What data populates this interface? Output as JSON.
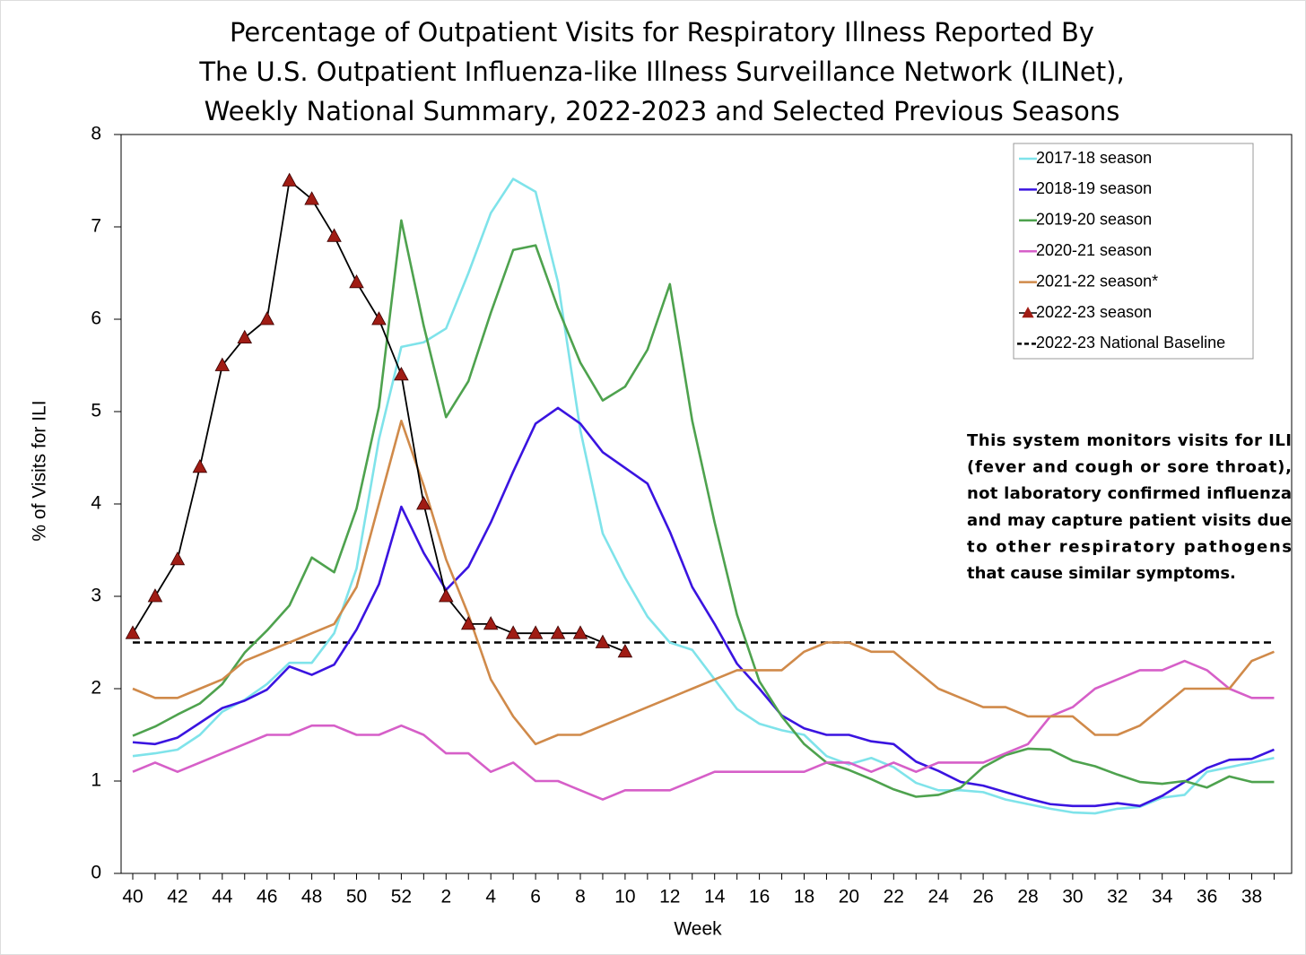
{
  "chart_data": {
    "type": "line",
    "title": [
      "Percentage of Outpatient Visits for Respiratory Illness Reported By",
      "The U.S. Outpatient Influenza-like Illness Surveillance Network (ILINet),",
      "Weekly National Summary, 2022-2023 and Selected Previous Seasons"
    ],
    "x_label": "Week",
    "y_label": "% of Visits for ILI",
    "ylim": [
      0,
      8
    ],
    "yticks": [
      0,
      1,
      2,
      3,
      4,
      5,
      6,
      7,
      8
    ],
    "categories": [
      "40",
      null,
      "42",
      null,
      "44",
      null,
      "46",
      null,
      "48",
      null,
      "50",
      null,
      "52",
      null,
      "2",
      null,
      "4",
      null,
      "6",
      null,
      "8",
      null,
      "10",
      null,
      "12",
      null,
      "14",
      null,
      "16",
      null,
      "18",
      null,
      "20",
      null,
      "22",
      null,
      "24",
      null,
      "26",
      null,
      "28",
      null,
      "30",
      null,
      "32",
      null,
      "34",
      null,
      "36",
      null,
      "38",
      null
    ],
    "series": [
      {
        "name": "2017-18 season",
        "color": "#7fe3ea",
        "values": [
          1.27,
          1.3,
          1.34,
          1.5,
          1.75,
          1.88,
          2.05,
          2.28,
          2.28,
          2.6,
          3.3,
          4.7,
          5.7,
          5.75,
          5.9,
          6.5,
          7.15,
          7.52,
          7.38,
          6.4,
          4.8,
          3.68,
          3.2,
          2.78,
          2.5,
          2.42,
          2.1,
          1.78,
          1.62,
          1.55,
          1.5,
          1.27,
          1.18,
          1.25,
          1.15,
          0.98,
          0.9,
          0.9,
          0.88,
          0.8,
          0.75,
          0.7,
          0.66,
          0.65,
          0.7,
          0.72,
          0.82,
          0.85,
          1.1,
          1.15,
          1.2,
          1.25
        ]
      },
      {
        "name": "2018-19 season",
        "color": "#3a14e0",
        "values": [
          1.42,
          1.4,
          1.47,
          1.63,
          1.79,
          1.87,
          1.99,
          2.24,
          2.15,
          2.26,
          2.64,
          3.13,
          3.97,
          3.47,
          3.07,
          3.32,
          3.8,
          4.35,
          4.87,
          5.04,
          4.87,
          4.56,
          4.39,
          4.22,
          3.7,
          3.1,
          2.7,
          2.27,
          2.0,
          1.71,
          1.57,
          1.5,
          1.5,
          1.43,
          1.4,
          1.21,
          1.11,
          0.99,
          0.95,
          0.88,
          0.81,
          0.75,
          0.73,
          0.73,
          0.76,
          0.73,
          0.84,
          0.99,
          1.14,
          1.23,
          1.24,
          1.34
        ]
      },
      {
        "name": "2019-20 season",
        "color": "#4ea24e",
        "values": [
          1.49,
          1.59,
          1.72,
          1.84,
          2.05,
          2.39,
          2.63,
          2.9,
          3.42,
          3.26,
          3.95,
          5.05,
          7.07,
          5.93,
          4.94,
          5.33,
          6.07,
          6.75,
          6.8,
          6.12,
          5.53,
          5.12,
          5.27,
          5.67,
          6.38,
          4.9,
          3.8,
          2.8,
          2.08,
          1.7,
          1.4,
          1.2,
          1.12,
          1.02,
          0.91,
          0.83,
          0.85,
          0.93,
          1.15,
          1.28,
          1.35,
          1.34,
          1.22,
          1.16,
          1.07,
          0.99,
          0.97,
          1.0,
          0.93,
          1.05,
          0.99,
          0.99
        ]
      },
      {
        "name": "2020-21 season",
        "color": "#d65fc8",
        "values": [
          1.1,
          1.2,
          1.1,
          1.2,
          1.3,
          1.4,
          1.5,
          1.5,
          1.6,
          1.6,
          1.5,
          1.5,
          1.6,
          1.5,
          1.3,
          1.3,
          1.1,
          1.2,
          1.0,
          1.0,
          0.9,
          0.8,
          0.9,
          0.9,
          0.9,
          1.0,
          1.1,
          1.1,
          1.1,
          1.1,
          1.1,
          1.2,
          1.2,
          1.1,
          1.2,
          1.1,
          1.2,
          1.2,
          1.2,
          1.3,
          1.4,
          1.7,
          1.8,
          2.0,
          2.1,
          2.2,
          2.2,
          2.3,
          2.2,
          2.0,
          1.9,
          1.9
        ]
      },
      {
        "name": "2021-22 season*",
        "color": "#d08a4a",
        "values": [
          2.0,
          1.9,
          1.9,
          2.0,
          2.1,
          2.3,
          2.4,
          2.5,
          2.6,
          2.7,
          3.1,
          4.0,
          4.9,
          4.2,
          3.4,
          2.8,
          2.1,
          1.7,
          1.4,
          1.5,
          1.5,
          1.6,
          1.7,
          1.8,
          1.9,
          2.0,
          2.1,
          2.2,
          2.2,
          2.2,
          2.4,
          2.5,
          2.5,
          2.4,
          2.4,
          2.2,
          2.0,
          1.9,
          1.8,
          1.8,
          1.7,
          1.7,
          1.7,
          1.5,
          1.5,
          1.6,
          1.8,
          2.0,
          2.0,
          2.0,
          2.3,
          2.4
        ]
      },
      {
        "name": "2022-23 season",
        "color": "#000000",
        "marker": "triangle",
        "marker_color": "#a01c14",
        "values": [
          2.6,
          3.0,
          3.4,
          4.4,
          5.5,
          5.8,
          6.0,
          7.5,
          7.3,
          6.9,
          6.4,
          6.0,
          5.4,
          4.0,
          3.0,
          2.7,
          2.7,
          2.6,
          2.6,
          2.6,
          2.6,
          2.5,
          2.4,
          null,
          null,
          null,
          null,
          null,
          null,
          null,
          null,
          null,
          null,
          null,
          null,
          null,
          null,
          null,
          null,
          null,
          null,
          null,
          null,
          null,
          null,
          null,
          null,
          null,
          null,
          null,
          null,
          null
        ]
      }
    ],
    "baseline": {
      "name": "2022-23 National Baseline",
      "color": "#000000",
      "value": 2.5
    },
    "annotation": [
      "This system monitors visits for ILI",
      "(fever and cough or sore throat),",
      "not laboratory confirmed influenza",
      "and may capture patient visits due",
      "to other respiratory pathogens",
      "that cause similar symptoms."
    ]
  }
}
